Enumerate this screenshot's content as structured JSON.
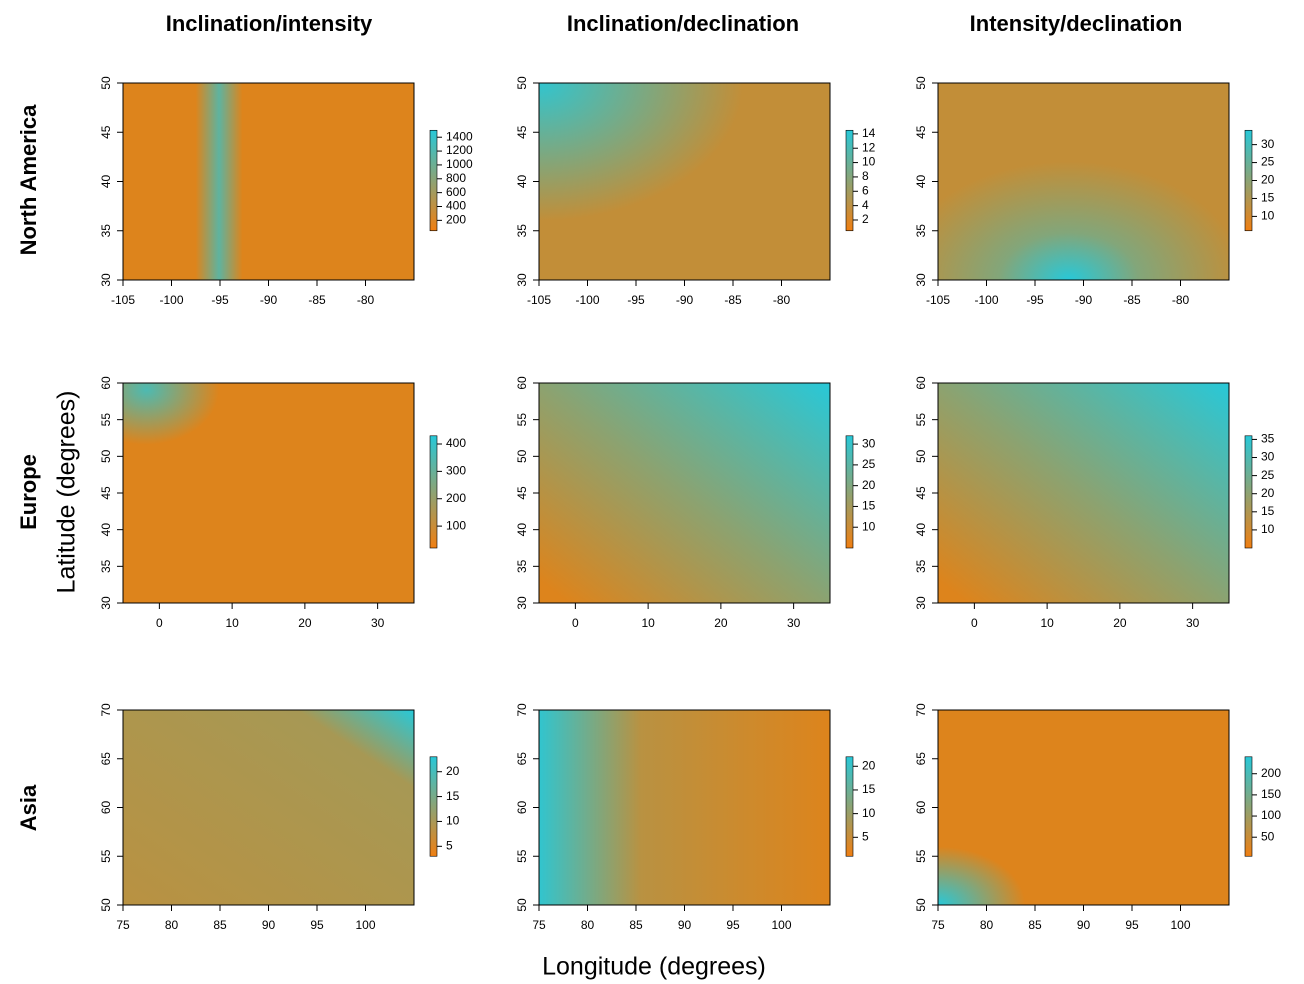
{
  "figure": {
    "column_titles": [
      "Inclination/intensity",
      "Inclination/declination",
      "Intensity/declination"
    ],
    "row_titles": [
      "North America",
      "Europe",
      "Asia"
    ],
    "x_label": "Longitude (degrees)",
    "y_label": "Latitude (degrees)"
  },
  "chart_data": [
    {
      "type": "heatmap",
      "xlim": [
        -105,
        -75
      ],
      "xticks": [
        -105,
        -100,
        -95,
        -90,
        -85,
        -80
      ],
      "ylim": [
        30,
        50
      ],
      "yticks": [
        30,
        35,
        40,
        45,
        50
      ],
      "colors": [
        "#f07f12",
        "#28c8d8"
      ],
      "colorbar_lim": [
        50,
        1500
      ],
      "colorbar_ticks": [
        200,
        400,
        600,
        800,
        1000,
        1200,
        1400
      ]
    },
    {
      "type": "heatmap",
      "xlim": [
        -105,
        -75
      ],
      "xticks": [
        -105,
        -100,
        -95,
        -90,
        -85,
        -80
      ],
      "ylim": [
        30,
        50
      ],
      "yticks": [
        30,
        35,
        40,
        45,
        50
      ],
      "colors": [
        "#f07f12",
        "#28c8d8"
      ],
      "colorbar_lim": [
        0.5,
        14.5
      ],
      "colorbar_ticks": [
        2,
        4,
        6,
        8,
        10,
        12,
        14
      ]
    },
    {
      "type": "heatmap",
      "xlim": [
        -105,
        -75
      ],
      "xticks": [
        -105,
        -100,
        -95,
        -90,
        -85,
        -80
      ],
      "ylim": [
        30,
        50
      ],
      "yticks": [
        30,
        35,
        40,
        45,
        50
      ],
      "colors": [
        "#f07f12",
        "#28c8d8"
      ],
      "colorbar_lim": [
        6,
        34
      ],
      "colorbar_ticks": [
        10,
        15,
        20,
        25,
        30
      ]
    },
    {
      "type": "heatmap",
      "xlim": [
        -5,
        35
      ],
      "xticks": [
        0,
        10,
        20,
        30
      ],
      "ylim": [
        30,
        60
      ],
      "yticks": [
        30,
        35,
        40,
        45,
        50,
        55,
        60
      ],
      "colors": [
        "#f07f12",
        "#28c8d8"
      ],
      "colorbar_lim": [
        20,
        430
      ],
      "colorbar_ticks": [
        100,
        200,
        300,
        400
      ]
    },
    {
      "type": "heatmap",
      "xlim": [
        -5,
        35
      ],
      "xticks": [
        0,
        10,
        20,
        30
      ],
      "ylim": [
        30,
        60
      ],
      "yticks": [
        30,
        35,
        40,
        45,
        50,
        55,
        60
      ],
      "colors": [
        "#f07f12",
        "#28c8d8"
      ],
      "colorbar_lim": [
        5,
        32
      ],
      "colorbar_ticks": [
        10,
        15,
        20,
        25,
        30
      ]
    },
    {
      "type": "heatmap",
      "xlim": [
        -5,
        35
      ],
      "xticks": [
        0,
        10,
        20,
        30
      ],
      "ylim": [
        30,
        60
      ],
      "yticks": [
        30,
        35,
        40,
        45,
        50,
        55,
        60
      ],
      "colors": [
        "#f07f12",
        "#28c8d8"
      ],
      "colorbar_lim": [
        5,
        36
      ],
      "colorbar_ticks": [
        10,
        15,
        20,
        25,
        30,
        35
      ]
    },
    {
      "type": "heatmap",
      "xlim": [
        75,
        105
      ],
      "xticks": [
        75,
        80,
        85,
        90,
        95,
        100
      ],
      "ylim": [
        50,
        70
      ],
      "yticks": [
        50,
        55,
        60,
        65,
        70
      ],
      "colors": [
        "#f07f12",
        "#28c8d8"
      ],
      "colorbar_lim": [
        3,
        23
      ],
      "colorbar_ticks": [
        5,
        10,
        15,
        20
      ]
    },
    {
      "type": "heatmap",
      "xlim": [
        75,
        105
      ],
      "xticks": [
        75,
        80,
        85,
        90,
        95,
        100
      ],
      "ylim": [
        50,
        70
      ],
      "yticks": [
        50,
        55,
        60,
        65,
        70
      ],
      "colors": [
        "#f07f12",
        "#28c8d8"
      ],
      "colorbar_lim": [
        1,
        22
      ],
      "colorbar_ticks": [
        5,
        10,
        15,
        20
      ]
    },
    {
      "type": "heatmap",
      "xlim": [
        75,
        105
      ],
      "xticks": [
        75,
        80,
        85,
        90,
        95,
        100
      ],
      "ylim": [
        50,
        70
      ],
      "yticks": [
        50,
        55,
        60,
        65,
        70
      ],
      "colors": [
        "#f07f12",
        "#28c8d8"
      ],
      "colorbar_lim": [
        5,
        240
      ],
      "colorbar_ticks": [
        50,
        100,
        150,
        200
      ]
    }
  ]
}
